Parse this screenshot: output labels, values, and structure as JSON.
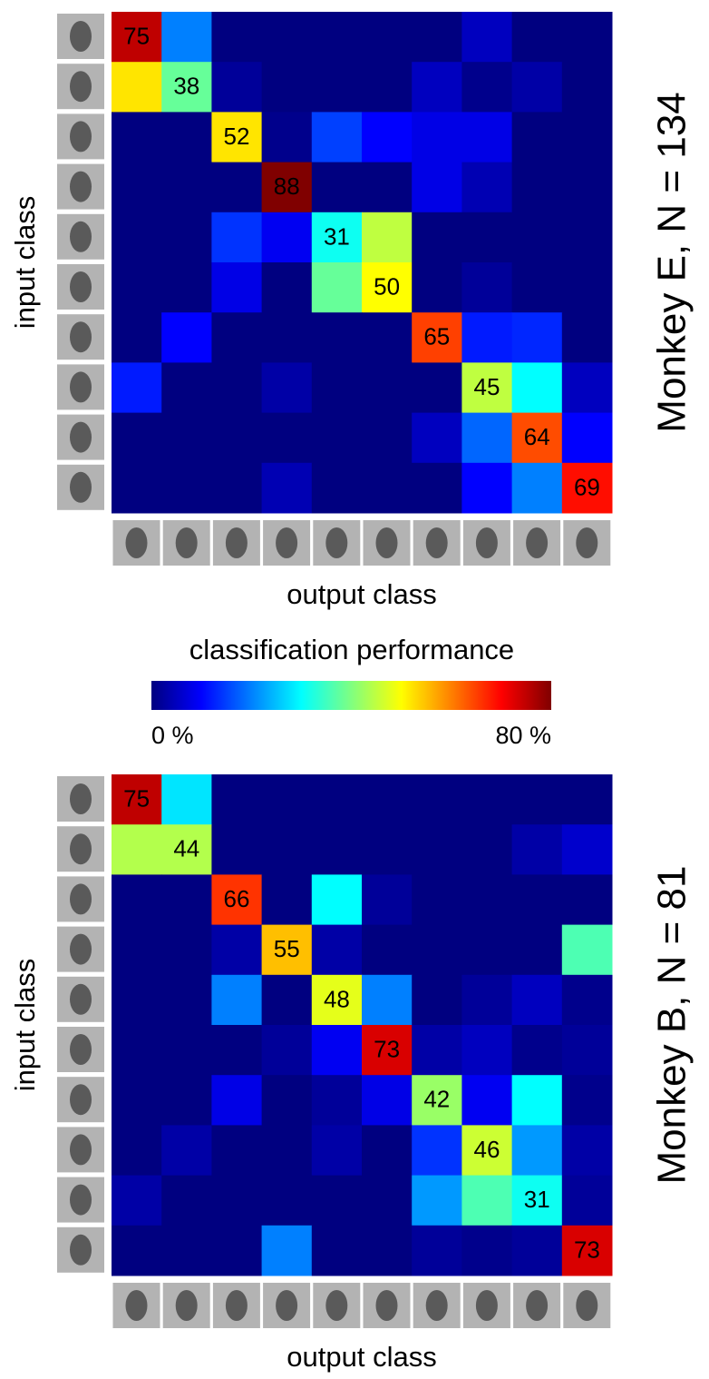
{
  "chart_data": [
    {
      "type": "heatmap",
      "title": "Monkey E, N = 134",
      "x_label": "output class",
      "y_label": "input class",
      "values": [
        [
          75,
          20,
          0,
          0,
          0,
          0,
          0,
          5,
          0,
          0
        ],
        [
          52,
          38,
          2,
          0,
          0,
          0,
          5,
          1,
          3,
          0
        ],
        [
          0,
          0,
          52,
          1,
          15,
          10,
          8,
          8,
          0,
          0
        ],
        [
          0,
          0,
          0,
          88,
          0,
          0,
          8,
          4,
          0,
          0
        ],
        [
          0,
          0,
          14,
          9,
          31,
          45,
          0,
          0,
          0,
          0
        ],
        [
          0,
          0,
          8,
          0,
          38,
          50,
          0,
          2,
          0,
          0
        ],
        [
          0,
          10,
          0,
          0,
          0,
          0,
          65,
          12,
          13,
          0
        ],
        [
          12,
          0,
          0,
          3,
          0,
          0,
          0,
          45,
          30,
          5
        ],
        [
          0,
          0,
          0,
          0,
          0,
          0,
          5,
          18,
          64,
          10
        ],
        [
          0,
          0,
          0,
          4,
          0,
          0,
          0,
          10,
          20,
          69
        ]
      ]
    },
    {
      "type": "heatmap",
      "title": "Monkey B, N = 81",
      "x_label": "output class",
      "y_label": "input class",
      "values": [
        [
          75,
          28,
          0,
          0,
          0,
          0,
          0,
          0,
          0,
          0
        ],
        [
          44,
          44,
          0,
          0,
          0,
          0,
          0,
          0,
          3,
          6
        ],
        [
          0,
          0,
          66,
          0,
          30,
          2,
          0,
          0,
          0,
          0
        ],
        [
          0,
          0,
          3,
          55,
          3,
          0,
          0,
          0,
          0,
          36
        ],
        [
          0,
          0,
          20,
          0,
          48,
          20,
          0,
          2,
          5,
          1
        ],
        [
          0,
          0,
          0,
          2,
          9,
          73,
          3,
          5,
          1,
          2
        ],
        [
          0,
          0,
          8,
          0,
          2,
          8,
          42,
          9,
          30,
          1
        ],
        [
          0,
          3,
          0,
          0,
          3,
          0,
          14,
          46,
          22,
          3
        ],
        [
          3,
          0,
          0,
          0,
          0,
          0,
          22,
          36,
          31,
          2
        ],
        [
          0,
          0,
          0,
          20,
          0,
          0,
          2,
          1,
          2,
          73
        ]
      ]
    }
  ],
  "colorbar": {
    "label": "classification performance",
    "colormap": "jet",
    "lim": [
      0,
      80
    ],
    "ticks": [
      {
        "value": 0,
        "label": "0 %"
      },
      {
        "value": 80,
        "label": "80 %"
      }
    ]
  }
}
